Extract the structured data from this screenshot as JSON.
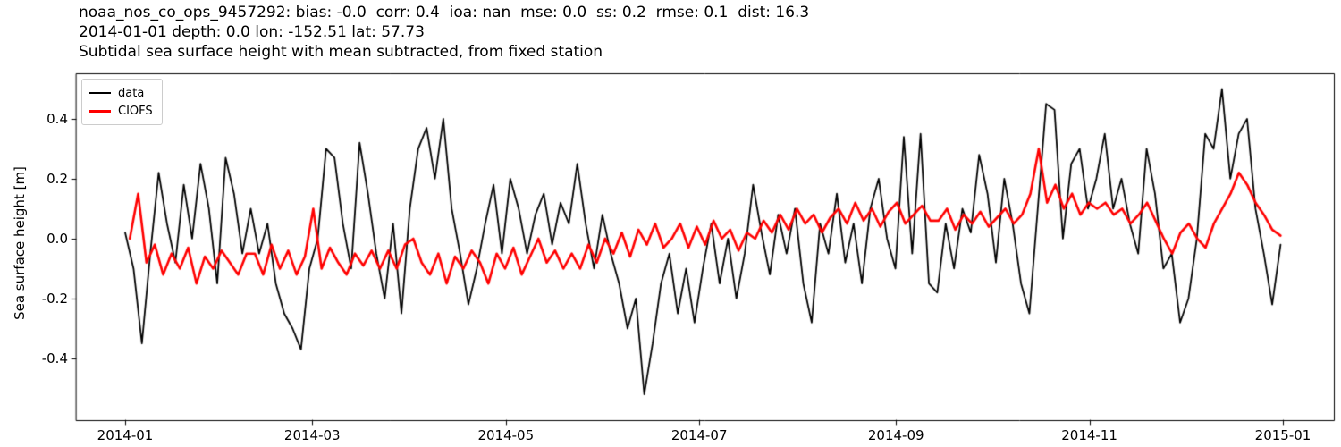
{
  "header": {
    "line1": "noaa_nos_co_ops_9457292: bias: -0.0  corr: 0.4  ioa: nan  mse: 0.0  ss: 0.2  rmse: 0.1  dist: 16.3",
    "line2": "2014-01-01 depth: 0.0 lon: -152.51 lat: 57.73",
    "line3": "Subtidal sea surface height with mean subtracted, from fixed station"
  },
  "chart_data": {
    "type": "line",
    "title": "noaa_nos_co_ops_9457292: bias: -0.0  corr: 0.4  ioa: nan  mse: 0.0  ss: 0.2  rmse: 0.1  dist: 16.3",
    "subtitle": "2014-01-01 depth: 0.0 lon: -152.51 lat: 57.73",
    "subtitle2": "Subtidal sea surface height with mean subtracted, from fixed station",
    "xlabel": "",
    "ylabel": "Sea surface height [m]",
    "x_unit": "fraction of year, 0 = 2014-01-01, 1 = 2015-01-01",
    "xlim": [
      -0.042,
      1.044
    ],
    "ylim": [
      -0.606,
      0.552
    ],
    "grid": false,
    "legend_position": "upper left",
    "x_ticks": [
      {
        "t": 0.0,
        "label": "2014-01"
      },
      {
        "t": 0.1616,
        "label": "2014-03"
      },
      {
        "t": 0.3288,
        "label": "2014-05"
      },
      {
        "t": 0.4959,
        "label": "2014-07"
      },
      {
        "t": 0.6658,
        "label": "2014-09"
      },
      {
        "t": 0.8329,
        "label": "2014-11"
      },
      {
        "t": 1.0,
        "label": "2015-01"
      }
    ],
    "y_ticks": [
      {
        "v": -0.4,
        "label": "-0.4"
      },
      {
        "v": -0.2,
        "label": "-0.2"
      },
      {
        "v": 0.0,
        "label": "0.0"
      },
      {
        "v": 0.2,
        "label": "0.2"
      },
      {
        "v": 0.4,
        "label": "0.4"
      }
    ],
    "series": [
      {
        "name": "data",
        "color": "#000000",
        "line_width": 1.8,
        "t_start": 0.0,
        "t_end": 0.998,
        "values": [
          0.02,
          -0.1,
          -0.35,
          -0.05,
          0.22,
          0.05,
          -0.08,
          0.18,
          0.0,
          0.25,
          0.1,
          -0.15,
          0.27,
          0.15,
          -0.05,
          0.1,
          -0.05,
          0.05,
          -0.15,
          -0.25,
          -0.3,
          -0.37,
          -0.1,
          0.0,
          0.3,
          0.27,
          0.05,
          -0.1,
          0.32,
          0.15,
          -0.05,
          -0.2,
          0.05,
          -0.25,
          0.1,
          0.3,
          0.37,
          0.2,
          0.4,
          0.1,
          -0.05,
          -0.22,
          -0.1,
          0.05,
          0.18,
          -0.05,
          0.2,
          0.1,
          -0.05,
          0.08,
          0.15,
          -0.02,
          0.12,
          0.05,
          0.25,
          0.05,
          -0.1,
          0.08,
          -0.05,
          -0.15,
          -0.3,
          -0.2,
          -0.52,
          -0.35,
          -0.15,
          -0.05,
          -0.25,
          -0.1,
          -0.28,
          -0.1,
          0.05,
          -0.15,
          0.0,
          -0.2,
          -0.05,
          0.18,
          0.02,
          -0.12,
          0.08,
          -0.05,
          0.1,
          -0.15,
          -0.28,
          0.05,
          -0.05,
          0.15,
          -0.08,
          0.05,
          -0.15,
          0.1,
          0.2,
          0.0,
          -0.1,
          0.34,
          -0.05,
          0.35,
          -0.15,
          -0.18,
          0.05,
          -0.1,
          0.1,
          0.02,
          0.28,
          0.15,
          -0.08,
          0.2,
          0.05,
          -0.15,
          -0.25,
          0.1,
          0.45,
          0.43,
          0.0,
          0.25,
          0.3,
          0.1,
          0.2,
          0.35,
          0.1,
          0.2,
          0.05,
          -0.05,
          0.3,
          0.15,
          -0.1,
          -0.05,
          -0.28,
          -0.2,
          0.0,
          0.35,
          0.3,
          0.5,
          0.2,
          0.35,
          0.4,
          0.1,
          -0.05,
          -0.22,
          -0.02
        ]
      },
      {
        "name": "CIOFS",
        "color": "#ff0000",
        "line_width": 2.6,
        "t_start": 0.004,
        "t_end": 0.998,
        "values": [
          0.0,
          0.15,
          -0.08,
          -0.02,
          -0.12,
          -0.05,
          -0.1,
          -0.03,
          -0.15,
          -0.06,
          -0.1,
          -0.04,
          -0.08,
          -0.12,
          -0.05,
          -0.05,
          -0.12,
          -0.02,
          -0.1,
          -0.04,
          -0.12,
          -0.06,
          0.1,
          -0.1,
          -0.03,
          -0.08,
          -0.12,
          -0.05,
          -0.09,
          -0.04,
          -0.1,
          -0.04,
          -0.1,
          -0.02,
          0.0,
          -0.08,
          -0.12,
          -0.05,
          -0.15,
          -0.06,
          -0.1,
          -0.04,
          -0.08,
          -0.15,
          -0.05,
          -0.1,
          -0.03,
          -0.12,
          -0.06,
          0.0,
          -0.08,
          -0.04,
          -0.1,
          -0.05,
          -0.1,
          -0.02,
          -0.08,
          0.0,
          -0.05,
          0.02,
          -0.06,
          0.03,
          -0.02,
          0.05,
          -0.03,
          0.0,
          0.05,
          -0.03,
          0.04,
          -0.02,
          0.06,
          0.0,
          0.03,
          -0.04,
          0.02,
          0.0,
          0.06,
          0.02,
          0.08,
          0.03,
          0.1,
          0.05,
          0.08,
          0.02,
          0.07,
          0.1,
          0.05,
          0.12,
          0.06,
          0.1,
          0.04,
          0.09,
          0.12,
          0.05,
          0.08,
          0.11,
          0.06,
          0.06,
          0.1,
          0.03,
          0.08,
          0.05,
          0.09,
          0.04,
          0.07,
          0.1,
          0.05,
          0.08,
          0.15,
          0.3,
          0.12,
          0.18,
          0.1,
          0.15,
          0.08,
          0.12,
          0.1,
          0.12,
          0.08,
          0.1,
          0.05,
          0.08,
          0.12,
          0.06,
          0.0,
          -0.05,
          0.02,
          0.05,
          0.0,
          -0.03,
          0.05,
          0.1,
          0.15,
          0.22,
          0.18,
          0.12,
          0.08,
          0.03,
          0.01
        ]
      }
    ]
  }
}
